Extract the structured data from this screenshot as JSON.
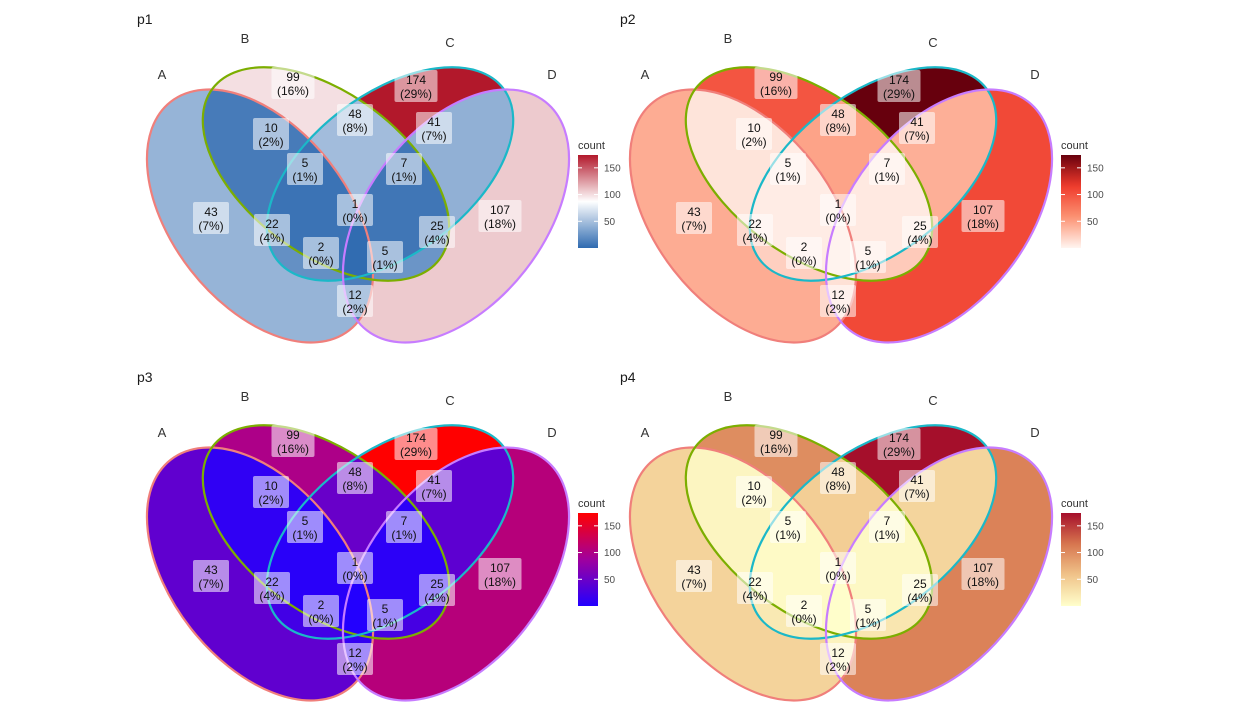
{
  "chart_data": [
    {
      "type": "venn",
      "title": "p1",
      "legend_title": "count",
      "legend_ticks": [
        50,
        100,
        150
      ],
      "legend_range": [
        0,
        174
      ],
      "palette": [
        "#2f6ab0",
        "#ffffff",
        "#b2182b"
      ],
      "palette_name": "RdBu (reversed)",
      "sets": [
        {
          "name": "A",
          "border": "#f07f7b"
        },
        {
          "name": "B",
          "border": "#7cae00"
        },
        {
          "name": "C",
          "border": "#1bb8c8"
        },
        {
          "name": "D",
          "border": "#c77cff"
        }
      ],
      "regions": [
        {
          "sets": "A",
          "count": 43,
          "pct": "(7%)"
        },
        {
          "sets": "B",
          "count": 99,
          "pct": "(16%)"
        },
        {
          "sets": "C",
          "count": 174,
          "pct": "(29%)"
        },
        {
          "sets": "D",
          "count": 107,
          "pct": "(18%)"
        },
        {
          "sets": "AB",
          "count": 10,
          "pct": "(2%)"
        },
        {
          "sets": "BC",
          "count": 48,
          "pct": "(8%)"
        },
        {
          "sets": "CD",
          "count": 41,
          "pct": "(7%)"
        },
        {
          "sets": "ABC",
          "count": 5,
          "pct": "(1%)"
        },
        {
          "sets": "BCD",
          "count": 7,
          "pct": "(1%)"
        },
        {
          "sets": "ABCD",
          "count": 1,
          "pct": "(0%)"
        },
        {
          "sets": "AC",
          "count": 22,
          "pct": "(4%)"
        },
        {
          "sets": "BD",
          "count": 25,
          "pct": "(4%)"
        },
        {
          "sets": "ACD",
          "count": 2,
          "pct": "(0%)"
        },
        {
          "sets": "ABD",
          "count": 5,
          "pct": "(1%)"
        },
        {
          "sets": "AD",
          "count": 12,
          "pct": "(2%)"
        }
      ]
    },
    {
      "type": "venn",
      "title": "p2",
      "legend_title": "count",
      "legend_ticks": [
        50,
        100,
        150
      ],
      "legend_range": [
        0,
        174
      ],
      "palette": [
        "#fff5f0",
        "#fc9272",
        "#ef3b2c",
        "#67000d"
      ],
      "palette_name": "Reds",
      "sets": [
        {
          "name": "A",
          "border": "#f07f7b"
        },
        {
          "name": "B",
          "border": "#7cae00"
        },
        {
          "name": "C",
          "border": "#1bb8c8"
        },
        {
          "name": "D",
          "border": "#c77cff"
        }
      ],
      "regions": [
        {
          "sets": "A",
          "count": 43,
          "pct": "(7%)"
        },
        {
          "sets": "B",
          "count": 99,
          "pct": "(16%)"
        },
        {
          "sets": "C",
          "count": 174,
          "pct": "(29%)"
        },
        {
          "sets": "D",
          "count": 107,
          "pct": "(18%)"
        },
        {
          "sets": "AB",
          "count": 10,
          "pct": "(2%)"
        },
        {
          "sets": "BC",
          "count": 48,
          "pct": "(8%)"
        },
        {
          "sets": "CD",
          "count": 41,
          "pct": "(7%)"
        },
        {
          "sets": "ABC",
          "count": 5,
          "pct": "(1%)"
        },
        {
          "sets": "BCD",
          "count": 7,
          "pct": "(1%)"
        },
        {
          "sets": "ABCD",
          "count": 1,
          "pct": "(0%)"
        },
        {
          "sets": "AC",
          "count": 22,
          "pct": "(4%)"
        },
        {
          "sets": "BD",
          "count": 25,
          "pct": "(4%)"
        },
        {
          "sets": "ACD",
          "count": 2,
          "pct": "(0%)"
        },
        {
          "sets": "ABD",
          "count": 5,
          "pct": "(1%)"
        },
        {
          "sets": "AD",
          "count": 12,
          "pct": "(2%)"
        }
      ]
    },
    {
      "type": "venn",
      "title": "p3",
      "legend_title": "count",
      "legend_ticks": [
        50,
        100,
        150
      ],
      "legend_range": [
        0,
        174
      ],
      "palette": [
        "#2200ff",
        "#a0009e",
        "#ff0000"
      ],
      "palette_name": "blue-red",
      "sets": [
        {
          "name": "A",
          "border": "#f07f7b"
        },
        {
          "name": "B",
          "border": "#7cae00"
        },
        {
          "name": "C",
          "border": "#1bb8c8"
        },
        {
          "name": "D",
          "border": "#c77cff"
        }
      ],
      "regions": [
        {
          "sets": "A",
          "count": 43,
          "pct": "(7%)"
        },
        {
          "sets": "B",
          "count": 99,
          "pct": "(16%)"
        },
        {
          "sets": "C",
          "count": 174,
          "pct": "(29%)"
        },
        {
          "sets": "D",
          "count": 107,
          "pct": "(18%)"
        },
        {
          "sets": "AB",
          "count": 10,
          "pct": "(2%)"
        },
        {
          "sets": "BC",
          "count": 48,
          "pct": "(8%)"
        },
        {
          "sets": "CD",
          "count": 41,
          "pct": "(7%)"
        },
        {
          "sets": "ABC",
          "count": 5,
          "pct": "(1%)"
        },
        {
          "sets": "BCD",
          "count": 7,
          "pct": "(1%)"
        },
        {
          "sets": "ABCD",
          "count": 1,
          "pct": "(0%)"
        },
        {
          "sets": "AC",
          "count": 22,
          "pct": "(4%)"
        },
        {
          "sets": "BD",
          "count": 25,
          "pct": "(4%)"
        },
        {
          "sets": "ACD",
          "count": 2,
          "pct": "(0%)"
        },
        {
          "sets": "ABD",
          "count": 5,
          "pct": "(1%)"
        },
        {
          "sets": "AD",
          "count": 12,
          "pct": "(2%)"
        }
      ]
    },
    {
      "type": "venn",
      "title": "p4",
      "legend_title": "count",
      "legend_ticks": [
        50,
        100,
        150
      ],
      "legend_range": [
        0,
        174
      ],
      "palette": [
        "#ffffcc",
        "#f0c48a",
        "#d7764f",
        "#a50f2b"
      ],
      "palette_name": "YlOrRd-like",
      "sets": [
        {
          "name": "A",
          "border": "#f07f7b"
        },
        {
          "name": "B",
          "border": "#7cae00"
        },
        {
          "name": "C",
          "border": "#1bb8c8"
        },
        {
          "name": "D",
          "border": "#c77cff"
        }
      ],
      "regions": [
        {
          "sets": "A",
          "count": 43,
          "pct": "(7%)"
        },
        {
          "sets": "B",
          "count": 99,
          "pct": "(16%)"
        },
        {
          "sets": "C",
          "count": 174,
          "pct": "(29%)"
        },
        {
          "sets": "D",
          "count": 107,
          "pct": "(18%)"
        },
        {
          "sets": "AB",
          "count": 10,
          "pct": "(2%)"
        },
        {
          "sets": "BC",
          "count": 48,
          "pct": "(8%)"
        },
        {
          "sets": "CD",
          "count": 41,
          "pct": "(7%)"
        },
        {
          "sets": "ABC",
          "count": 5,
          "pct": "(1%)"
        },
        {
          "sets": "BCD",
          "count": 7,
          "pct": "(1%)"
        },
        {
          "sets": "ABCD",
          "count": 1,
          "pct": "(0%)"
        },
        {
          "sets": "AC",
          "count": 22,
          "pct": "(4%)"
        },
        {
          "sets": "BD",
          "count": 25,
          "pct": "(4%)"
        },
        {
          "sets": "ACD",
          "count": 2,
          "pct": "(0%)"
        },
        {
          "sets": "ABD",
          "count": 5,
          "pct": "(1%)"
        },
        {
          "sets": "AD",
          "count": 12,
          "pct": "(2%)"
        }
      ]
    }
  ]
}
